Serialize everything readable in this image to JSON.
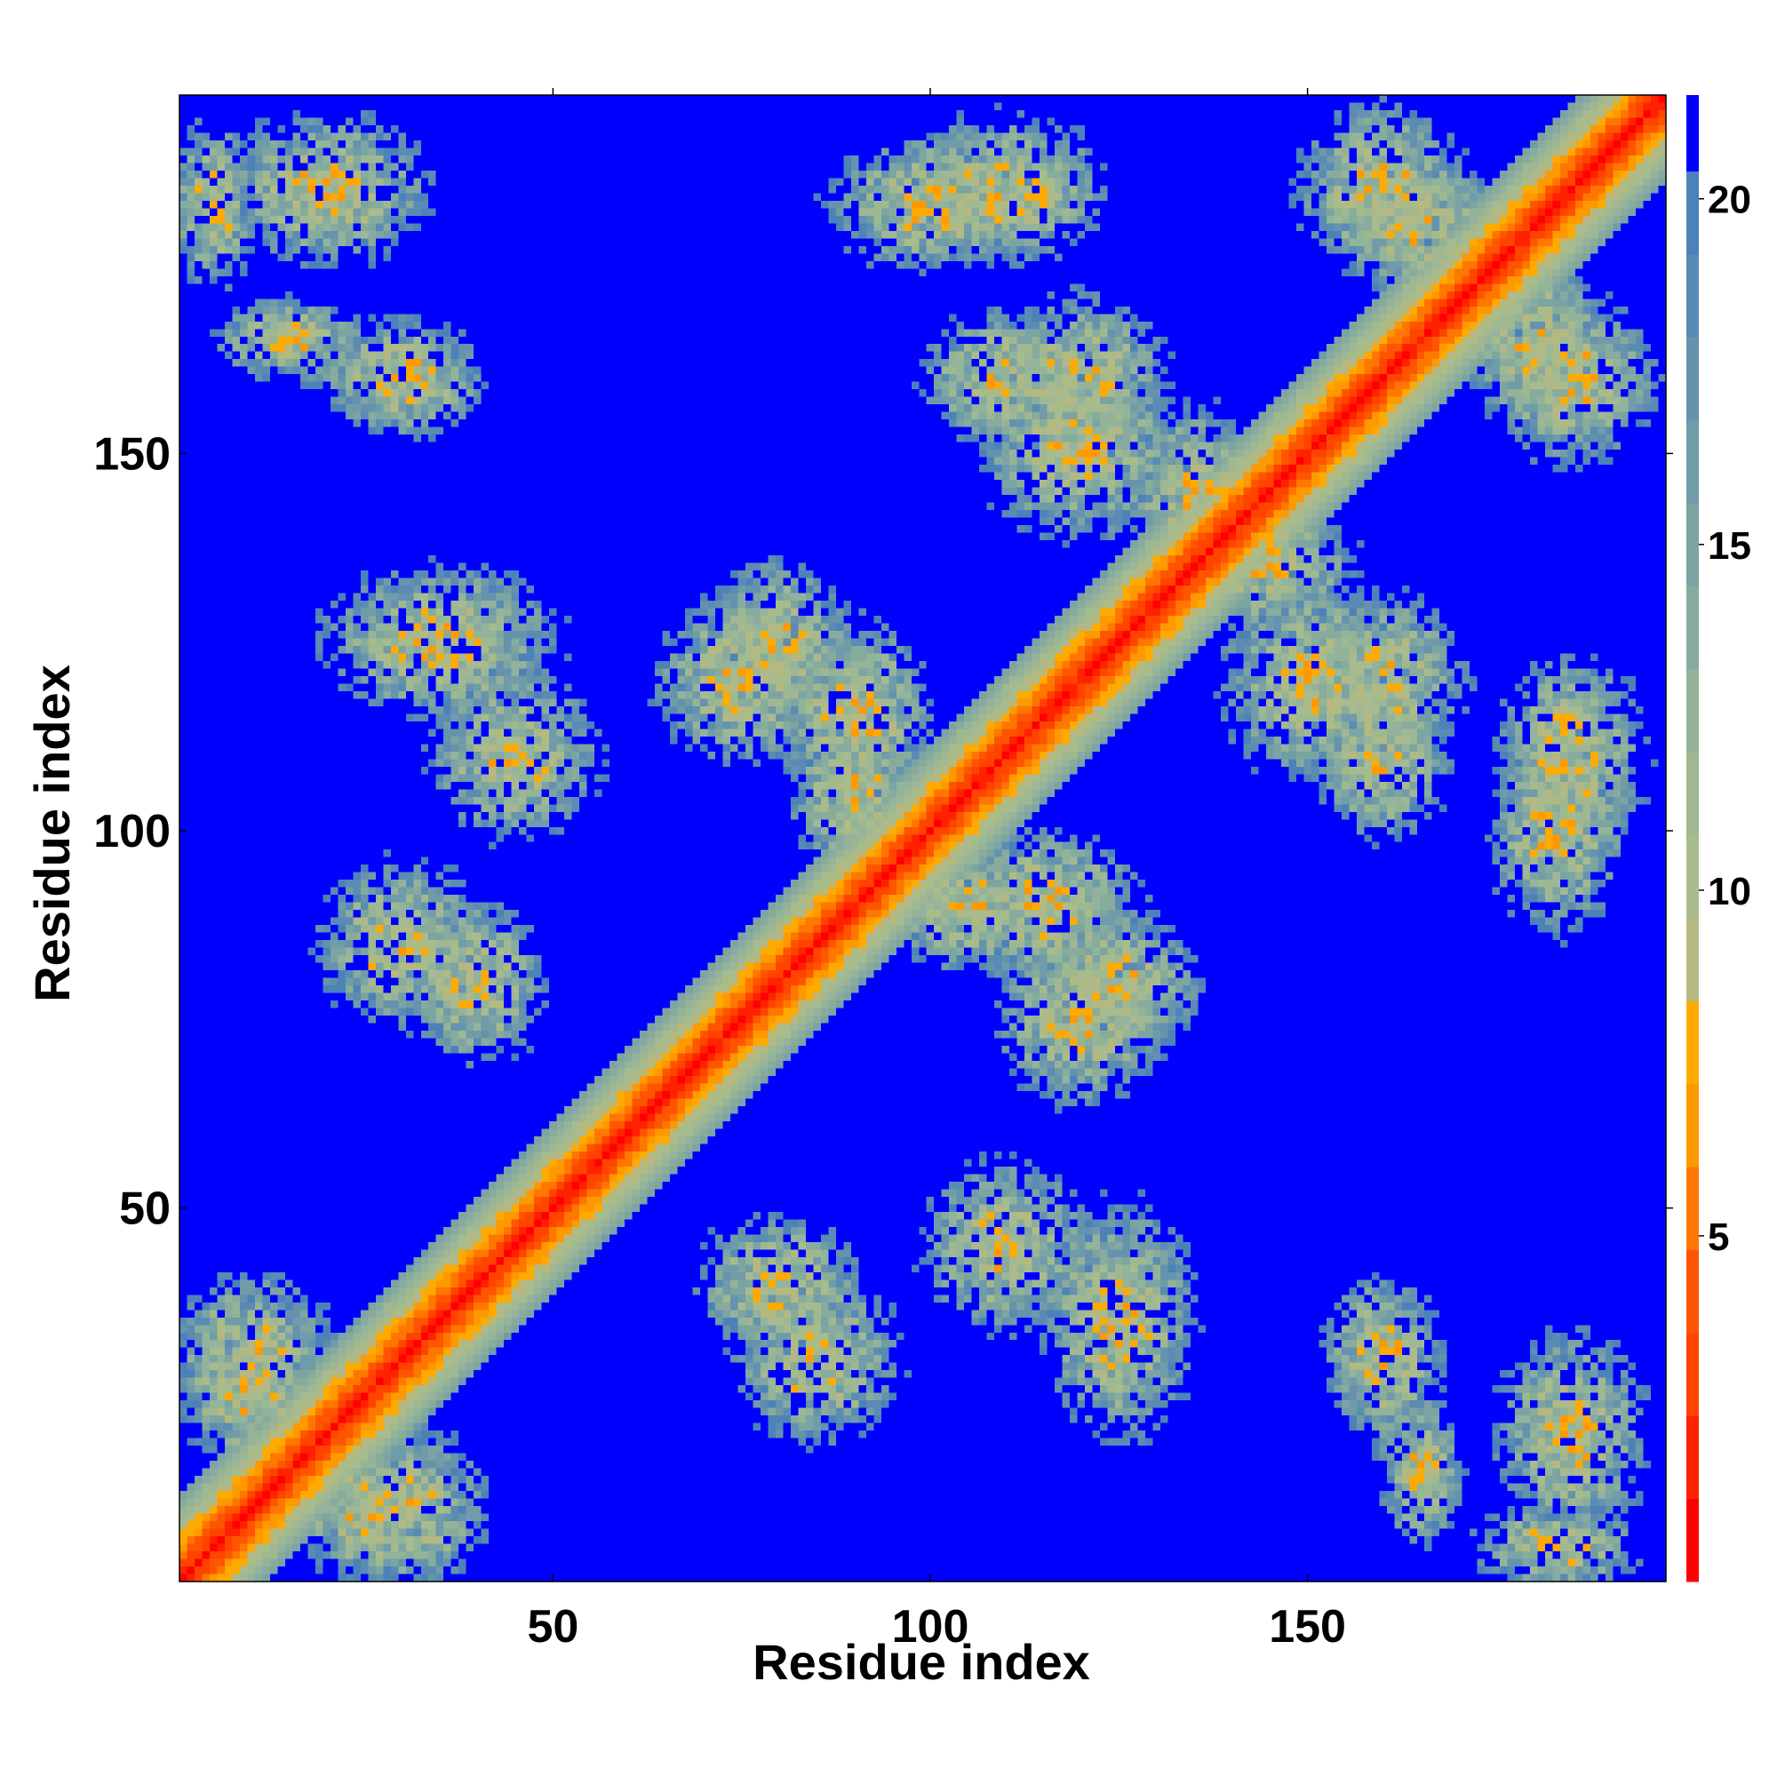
{
  "chart_data": {
    "type": "heatmap",
    "title": "",
    "xlabel": "Residue index",
    "ylabel": "Residue index",
    "n_residues": 197,
    "xlim": [
      1,
      197
    ],
    "ylim": [
      1,
      197
    ],
    "x_ticks": [
      50,
      100,
      150
    ],
    "y_ticks": [
      50,
      100,
      150
    ],
    "x_tick_labels": [
      "50",
      "100",
      "150"
    ],
    "y_tick_labels": [
      "50",
      "100",
      "150"
    ],
    "colorbar": {
      "ticks": [
        5,
        10,
        15,
        20
      ],
      "tick_labels": [
        "5",
        "10",
        "15",
        "20"
      ],
      "range": [
        0,
        21.5
      ],
      "levels": [
        {
          "max": 1.2,
          "color": "#ff0000"
        },
        {
          "max": 2.4,
          "color": "#ff2200"
        },
        {
          "max": 3.6,
          "color": "#ff4400"
        },
        {
          "max": 4.8,
          "color": "#ff5500"
        },
        {
          "max": 6.0,
          "color": "#ff7700"
        },
        {
          "max": 7.2,
          "color": "#ff9900"
        },
        {
          "max": 8.4,
          "color": "#ffaa00"
        },
        {
          "max": 9.6,
          "color": "#b4b982"
        },
        {
          "max": 10.8,
          "color": "#a8bb8c"
        },
        {
          "max": 12.0,
          "color": "#9fb891"
        },
        {
          "max": 13.2,
          "color": "#93b39a"
        },
        {
          "max": 14.4,
          "color": "#87ab9d"
        },
        {
          "max": 15.6,
          "color": "#7ca4a2"
        },
        {
          "max": 16.8,
          "color": "#709ba8"
        },
        {
          "max": 18.0,
          "color": "#6593ad"
        },
        {
          "max": 19.2,
          "color": "#5a8bb3"
        },
        {
          "max": 20.4,
          "color": "#4d82b8"
        },
        {
          "max": 21.5,
          "color": "#0000ff"
        }
      ]
    },
    "background_value": 21.5,
    "background_color": "#0000ff",
    "diagonal_band": {
      "min_distance": 0.8,
      "slope_per_offset": 1.3,
      "fade_offset": 11
    },
    "contact_regions": [
      {
        "center": [
          5,
          183
        ],
        "span": [
          5,
          10
        ]
      },
      {
        "center": [
          15,
          165
        ],
        "span": [
          9,
          5
        ]
      },
      {
        "center": [
          35,
          125
        ],
        "span": [
          14,
          9
        ]
      },
      {
        "center": [
          30,
          85
        ],
        "span": [
          10,
          10
        ]
      },
      {
        "center": [
          10,
          30
        ],
        "span": [
          10,
          10
        ]
      },
      {
        "center": [
          25,
          10
        ],
        "span": [
          8,
          8
        ]
      },
      {
        "center": [
          75,
          120
        ],
        "span": [
          10,
          10
        ]
      },
      {
        "center": [
          90,
          105
        ],
        "span": [
          8,
          9
        ]
      },
      {
        "center": [
          100,
          183
        ],
        "span": [
          12,
          8
        ]
      },
      {
        "center": [
          110,
          160
        ],
        "span": [
          10,
          8
        ]
      },
      {
        "center": [
          120,
          150
        ],
        "span": [
          12,
          10
        ]
      },
      {
        "center": [
          115,
          90
        ],
        "span": [
          12,
          9
        ]
      },
      {
        "center": [
          125,
          80
        ],
        "span": [
          10,
          8
        ]
      },
      {
        "center": [
          110,
          45
        ],
        "span": [
          10,
          10
        ]
      },
      {
        "center": [
          80,
          40
        ],
        "span": [
          10,
          8
        ]
      },
      {
        "center": [
          165,
          180
        ],
        "span": [
          10,
          8
        ]
      },
      {
        "center": [
          185,
          160
        ],
        "span": [
          10,
          10
        ]
      },
      {
        "center": [
          160,
          120
        ],
        "span": [
          10,
          10
        ]
      },
      {
        "center": [
          185,
          110
        ],
        "span": [
          9,
          12
        ]
      },
      {
        "center": [
          160,
          30
        ],
        "span": [
          7,
          10
        ]
      },
      {
        "center": [
          185,
          20
        ],
        "span": [
          9,
          12
        ]
      },
      {
        "center": [
          145,
          135
        ],
        "span": [
          10,
          8
        ]
      }
    ]
  }
}
